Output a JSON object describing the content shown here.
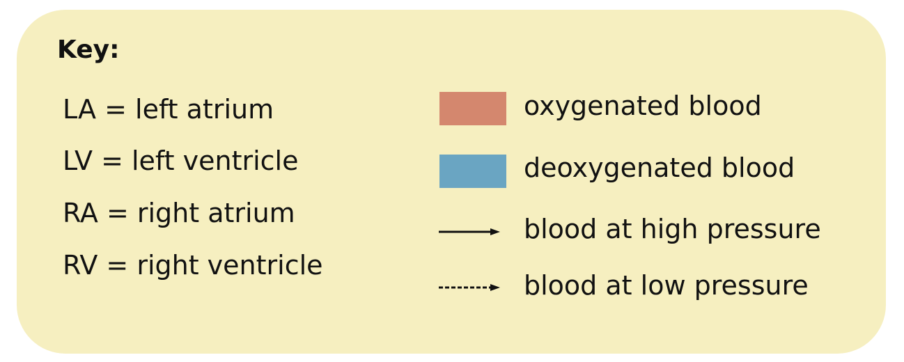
{
  "key": {
    "title": "Key:",
    "abbreviations": [
      "LA = left atrium",
      "LV = left ventricle",
      "RA = right atrium",
      "RV = right ventricle"
    ],
    "legend": [
      {
        "label": "oxygenated blood",
        "kind": "swatch",
        "color": "#d4876e"
      },
      {
        "label": "deoxygenated blood",
        "kind": "swatch",
        "color": "#6aa5c2"
      },
      {
        "label": "blood at high pressure",
        "kind": "solid-arrow"
      },
      {
        "label": "blood at low pressure",
        "kind": "dashed-arrow"
      }
    ]
  }
}
